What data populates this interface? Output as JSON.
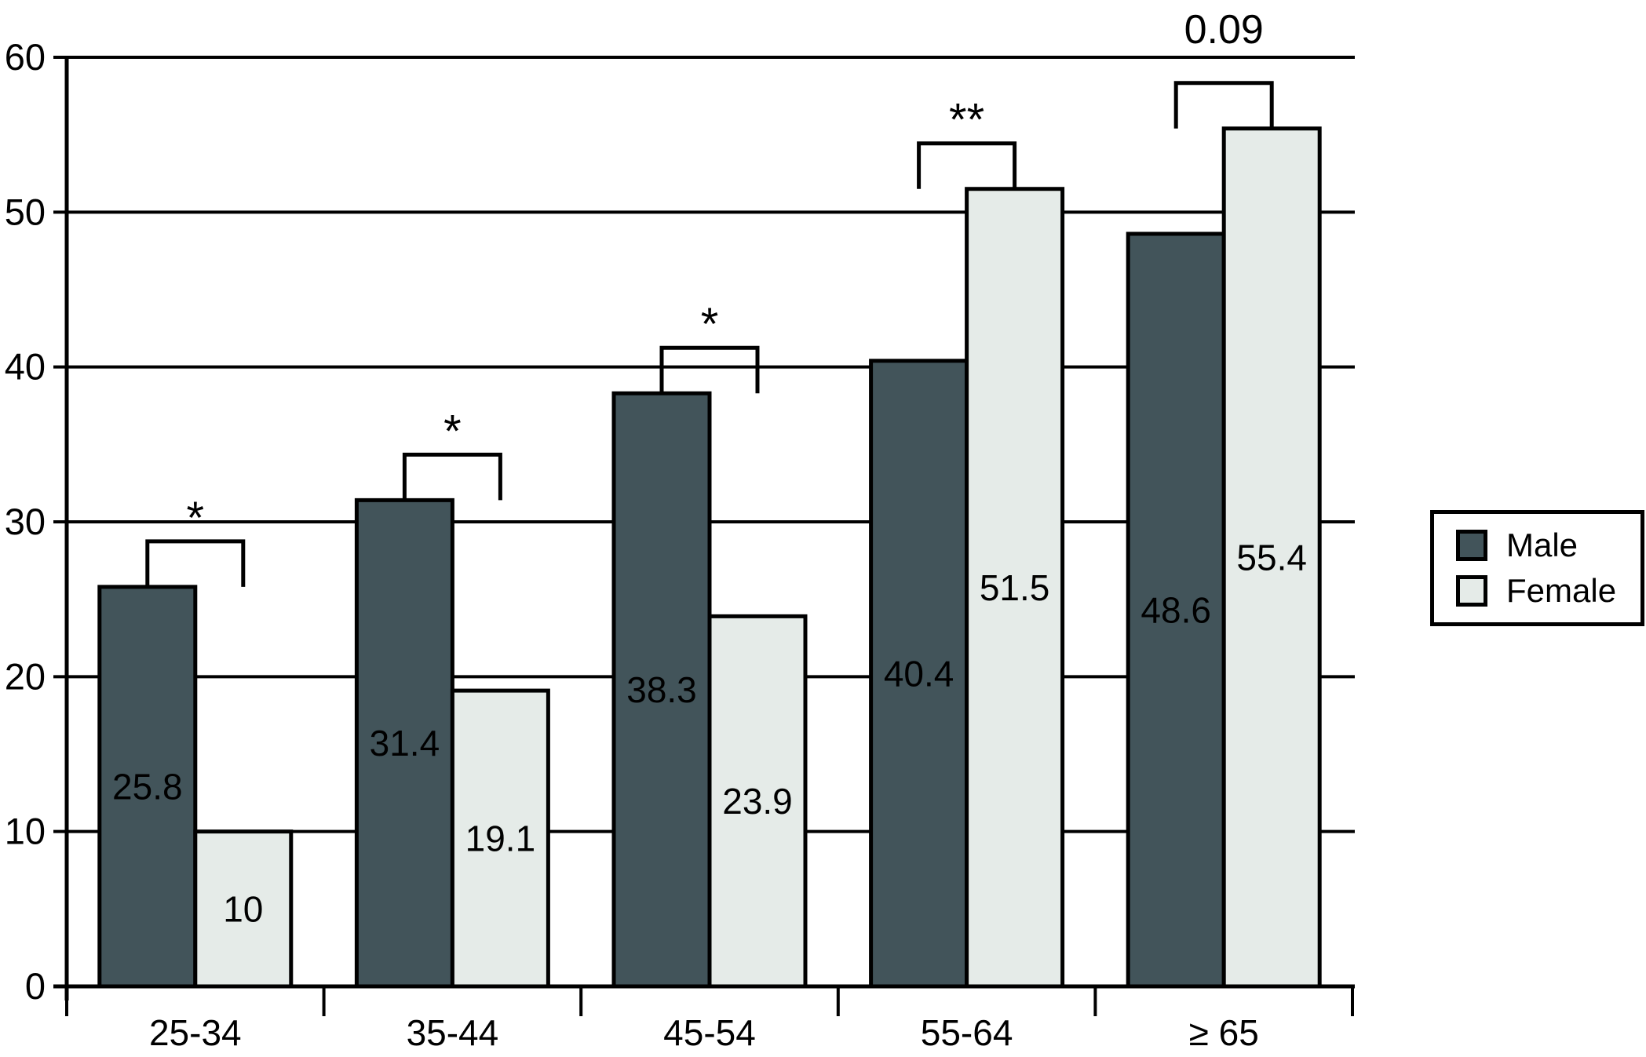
{
  "chart_data": {
    "type": "bar",
    "title": "",
    "categories": [
      "25-34",
      "35-44",
      "45-54",
      "55-64",
      "≥ 65"
    ],
    "series": [
      {
        "name": "Male",
        "color": "#42545a",
        "values": [
          25.8,
          31.4,
          38.3,
          40.4,
          48.6
        ]
      },
      {
        "name": "Female",
        "color": "#e5ebe8",
        "values": [
          10,
          19.1,
          23.9,
          51.5,
          55.4
        ]
      }
    ],
    "value_labels": {
      "Male": [
        "25.8",
        "31.4",
        "38.3",
        "40.4",
        "48.6"
      ],
      "Female": [
        "10",
        "19.1",
        "23.9",
        "51.5",
        "55.4"
      ]
    },
    "significance_labels": [
      "*",
      "*",
      "*",
      "**",
      "0.09"
    ],
    "xlabel": "",
    "ylabel": "",
    "y_axis": {
      "min": 0,
      "max": 60,
      "tick_interval": 10,
      "tick_labels": [
        "0",
        "10",
        "20",
        "30",
        "40",
        "50",
        "60"
      ]
    },
    "grid": true,
    "legend_position": "right",
    "colors": {
      "bar_outline": "#000000",
      "axis": "#000000",
      "background": "#ffffff"
    }
  }
}
